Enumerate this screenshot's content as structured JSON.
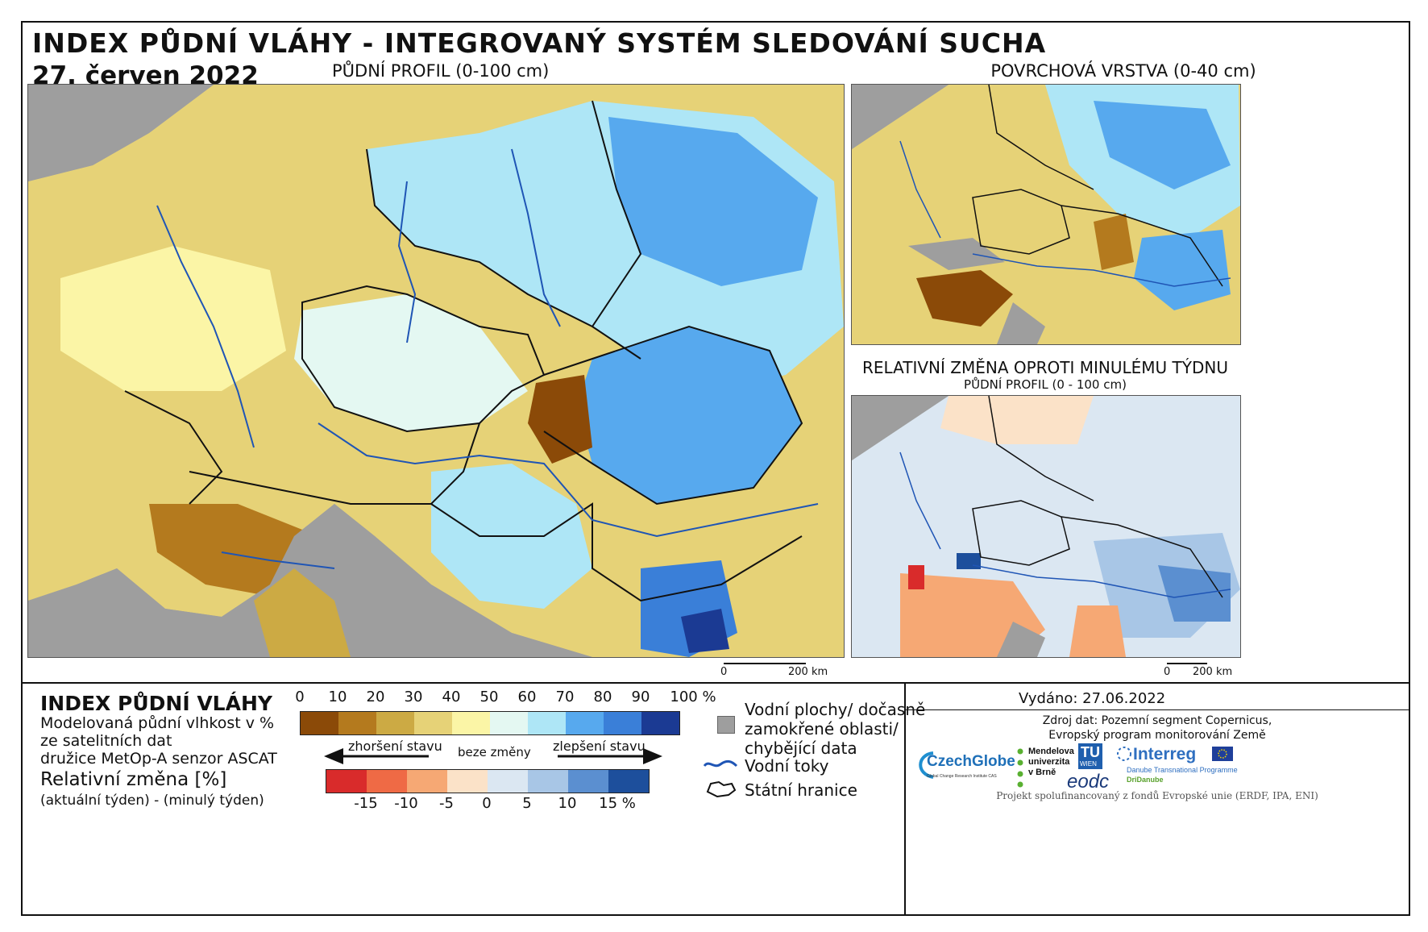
{
  "header": {
    "title": "INDEX PŮDNÍ VLÁHY - INTEGROVANÝ SYSTÉM SLEDOVÁNÍ SUCHA",
    "date": "27. červen 2022"
  },
  "maps": {
    "main_label": "PŮDNÍ PROFIL (0-100 cm)",
    "surface_label": "POVRCHOVÁ VRSTVA (0-40 cm)",
    "change_title": "RELATIVNÍ ZMĚNA OPROTI MINULÉMU TÝDNU",
    "change_subtitle": "PŮDNÍ PROFIL (0 - 100 cm)"
  },
  "scales": {
    "main": {
      "zero": "0",
      "distance": "200 km"
    },
    "change": {
      "zero": "0",
      "distance": "200 km"
    }
  },
  "legend": {
    "title": "INDEX PŮDNÍ VLÁHY",
    "desc_lines": [
      "Modelovaná půdní vlhkost v %",
      "ze satelitních dat",
      "družice MetOp-A senzor ASCAT"
    ],
    "change_title": "Relativní změna [%]",
    "change_desc": "(aktuální týden) - (minulý týden)",
    "index_ticks": [
      "0",
      "10",
      "20",
      "30",
      "40",
      "50",
      "60",
      "70",
      "80",
      "90",
      "100 %"
    ],
    "index_colors": [
      "#8b4a08",
      "#b47a1e",
      "#ccaa44",
      "#e6d277",
      "#fbf5a6",
      "#e4f8f2",
      "#aee6f6",
      "#57a9ee",
      "#3a7fd8",
      "#1b3a93"
    ],
    "change_ticks": [
      "-15",
      "-10",
      "-5",
      "0",
      "5",
      "10",
      "15 %"
    ],
    "change_colors": [
      "#d92b2b",
      "#ef6a45",
      "#f6a874",
      "#fbe2c8",
      "#dbe7f2",
      "#a8c6e6",
      "#5b8fd0",
      "#1d4f9c"
    ],
    "worse": "zhoršení stavu",
    "neutral": "beze změny",
    "better": "zlepšení stavu"
  },
  "key": {
    "water_lines": [
      "Vodní plochy/ dočasně",
      "zamokřené oblasti/",
      "chybějící data"
    ],
    "rivers": "Vodní toky",
    "borders": "Státní hranice"
  },
  "footer": {
    "issued": "Vydáno: 27.06.2022",
    "source_lines": [
      "Zdroj dat: Pozemní segment Copernicus,",
      "Evropský program monitorování Země"
    ],
    "funding": "Projekt spolufinancovaný z fondů Evropské unie (ERDF, IPA, ENI)"
  },
  "logos": {
    "czechglobe": "CzechGlobe",
    "czechglobe_sub": "Global Change Research Institute CAS",
    "mendel_lines": [
      "Mendelova",
      "univerzita",
      "v Brně"
    ],
    "tu": "TU",
    "tu_sub": "WIEN",
    "eodc": "eodc",
    "interreg": "Interreg",
    "interreg_sub": "Danube Transnational Programme",
    "dridanube": "DriDanube"
  },
  "colors": {
    "water_gray": "#9e9e9e",
    "river_blue": "#1f55b5",
    "border": "#111111"
  }
}
